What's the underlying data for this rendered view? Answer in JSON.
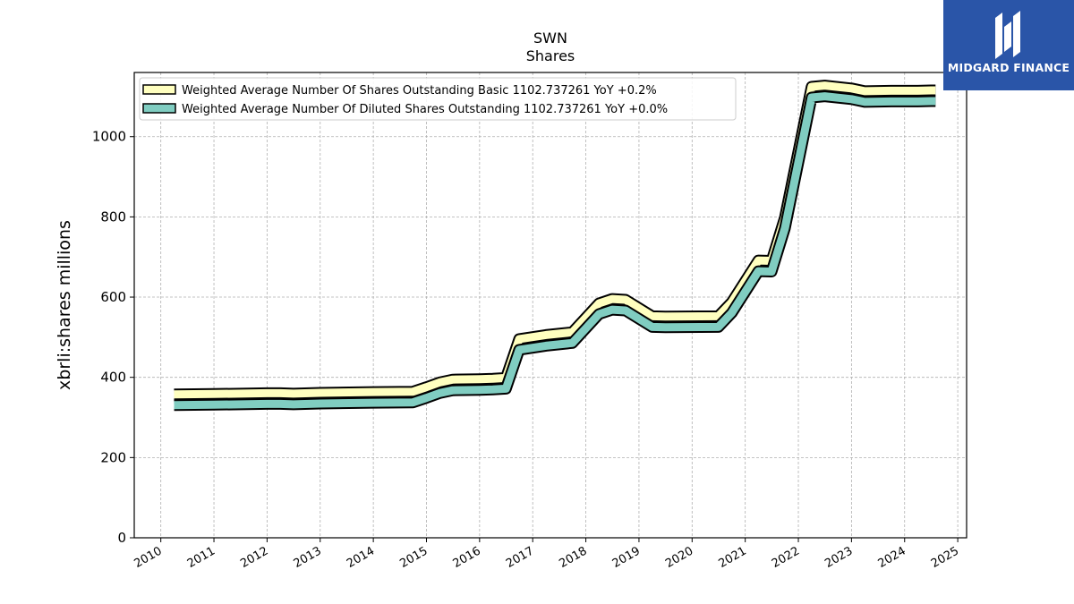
{
  "brand": {
    "name": "MIDGARD FINANCE",
    "background": "#2a55a8",
    "icon": "midgard-logo-icon"
  },
  "chart_data": {
    "type": "line",
    "title": "SWN",
    "subtitle": "Shares",
    "xlabel": "",
    "ylabel": "xbrli:shares millions",
    "xlim": [
      "2009-07",
      "2025-03"
    ],
    "ylim": [
      0,
      1160
    ],
    "x_ticks": [
      "2010",
      "2011",
      "2012",
      "2013",
      "2014",
      "2015",
      "2016",
      "2017",
      "2018",
      "2019",
      "2020",
      "2021",
      "2022",
      "2023",
      "2024",
      "2025"
    ],
    "y_ticks": [
      0,
      200,
      400,
      600,
      800,
      1000
    ],
    "grid": true,
    "legend_position": "upper-left",
    "series": [
      {
        "name": "Weighted Average Number Of Shares Outstanding Basic",
        "legend_label": "Weighted Average Number Of Shares Outstanding Basic  1102.737261 YoY +0.2%",
        "color": "#ffffbf",
        "points": [
          [
            "2010-03-31",
            344
          ],
          [
            "2010-12-31",
            345
          ],
          [
            "2011-12-31",
            347
          ],
          [
            "2012-03-31",
            347
          ],
          [
            "2012-06-30",
            346
          ],
          [
            "2012-12-31",
            348
          ],
          [
            "2013-12-31",
            350
          ],
          [
            "2014-09-30",
            351
          ],
          [
            "2014-12-31",
            362
          ],
          [
            "2015-03-31",
            374
          ],
          [
            "2015-06-30",
            381
          ],
          [
            "2015-12-31",
            382
          ],
          [
            "2016-03-31",
            383
          ],
          [
            "2016-06-30",
            385
          ],
          [
            "2016-09-30",
            482
          ],
          [
            "2017-03-31",
            492
          ],
          [
            "2017-09-30",
            499
          ],
          [
            "2018-03-31",
            571
          ],
          [
            "2018-06-30",
            582
          ],
          [
            "2018-09-30",
            580
          ],
          [
            "2019-03-31",
            539
          ],
          [
            "2019-06-30",
            538
          ],
          [
            "2020-06-30",
            539
          ],
          [
            "2020-09-30",
            574
          ],
          [
            "2021-03-31",
            678
          ],
          [
            "2021-06-30",
            677
          ],
          [
            "2021-09-30",
            785
          ],
          [
            "2022-03-31",
            1111
          ],
          [
            "2022-06-30",
            1114
          ],
          [
            "2022-12-31",
            1107
          ],
          [
            "2023-03-31",
            1100
          ],
          [
            "2023-09-30",
            1101
          ],
          [
            "2024-03-31",
            1101
          ],
          [
            "2024-06-30",
            1102
          ],
          [
            "2024-07-31",
            1102
          ]
        ]
      },
      {
        "name": "Weighted Average Number Of Diluted Shares Outstanding",
        "legend_label": "Weighted Average Number Of Diluted Shares Outstanding  1102.737261 YoY +0.0%",
        "color": "#80cdc1",
        "points": [
          [
            "2010-03-31",
            344
          ],
          [
            "2010-12-31",
            345
          ],
          [
            "2011-12-31",
            347
          ],
          [
            "2012-03-31",
            347
          ],
          [
            "2012-06-30",
            346
          ],
          [
            "2012-12-31",
            348
          ],
          [
            "2013-12-31",
            350
          ],
          [
            "2014-09-30",
            351
          ],
          [
            "2014-12-31",
            362
          ],
          [
            "2015-03-31",
            374
          ],
          [
            "2015-06-30",
            381
          ],
          [
            "2015-12-31",
            382
          ],
          [
            "2016-03-31",
            383
          ],
          [
            "2016-06-30",
            385
          ],
          [
            "2016-09-30",
            482
          ],
          [
            "2017-03-31",
            492
          ],
          [
            "2017-09-30",
            499
          ],
          [
            "2018-03-31",
            571
          ],
          [
            "2018-06-30",
            582
          ],
          [
            "2018-09-30",
            580
          ],
          [
            "2019-03-31",
            539
          ],
          [
            "2019-06-30",
            538
          ],
          [
            "2020-06-30",
            539
          ],
          [
            "2020-09-30",
            574
          ],
          [
            "2021-03-31",
            678
          ],
          [
            "2021-06-30",
            677
          ],
          [
            "2021-09-30",
            785
          ],
          [
            "2022-03-31",
            1111
          ],
          [
            "2022-06-30",
            1114
          ],
          [
            "2022-12-31",
            1107
          ],
          [
            "2023-03-31",
            1100
          ],
          [
            "2023-09-30",
            1101
          ],
          [
            "2024-03-31",
            1101
          ],
          [
            "2024-06-30",
            1102
          ],
          [
            "2024-07-31",
            1102
          ]
        ]
      }
    ]
  }
}
